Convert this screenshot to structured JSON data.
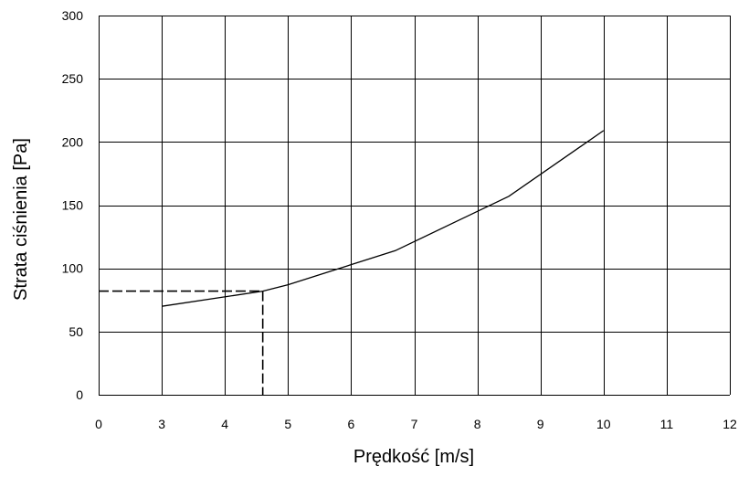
{
  "chart_data": {
    "type": "line",
    "xlabel": "Prędkość [m/s]",
    "ylabel": "Strata ciśnienia [Pa]",
    "x_tick_labels": [
      "0",
      "3",
      "4",
      "5",
      "6",
      "7",
      "8",
      "9",
      "10",
      "11",
      "12"
    ],
    "y_ticks": [
      0,
      50,
      100,
      150,
      200,
      250,
      300
    ],
    "ylim": [
      0,
      300
    ],
    "grid": true,
    "legend": "none",
    "series": [
      {
        "points": [
          {
            "x": 3,
            "y": 70
          },
          {
            "x": 4.6,
            "y": 82
          },
          {
            "x": 5,
            "y": 87
          },
          {
            "x": 6.7,
            "y": 114
          },
          {
            "x": 8.5,
            "y": 157
          },
          {
            "x": 10,
            "y": 209
          }
        ]
      }
    ],
    "guide_lines": {
      "style": "dashed",
      "x": 4.6,
      "y": 82
    }
  }
}
